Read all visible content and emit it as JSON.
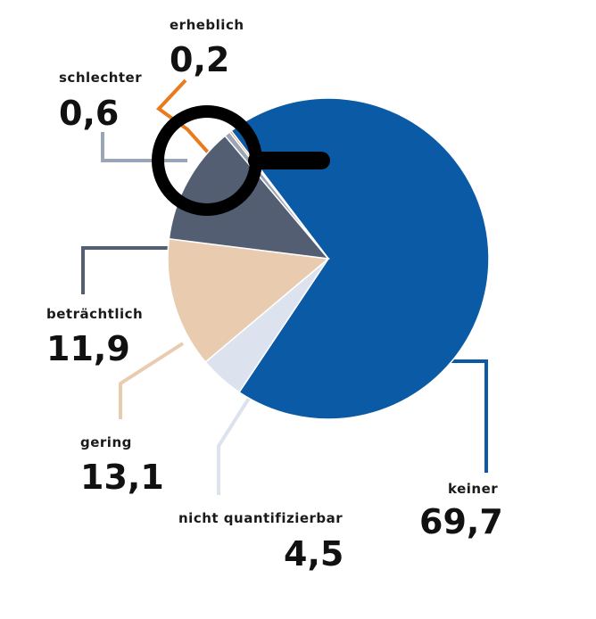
{
  "chart_data": {
    "type": "pie",
    "title": "",
    "slices": [
      {
        "label": "keiner",
        "display": "69,7",
        "value": 69.7,
        "color": "#0a5aa6"
      },
      {
        "label": "nicht quantifizierbar",
        "display": "4,5",
        "value": 4.5,
        "color": "#dde3ee"
      },
      {
        "label": "gering",
        "display": "13,1",
        "value": 13.1,
        "color": "#e9ccaf"
      },
      {
        "label": "beträchtlich",
        "display": "11,9",
        "value": 11.9,
        "color": "#545e73"
      },
      {
        "label": "schlechter",
        "display": "0,6",
        "value": 0.6,
        "color": "#9ba5b8"
      },
      {
        "label": "erheblich",
        "display": "0,2",
        "value": 0.2,
        "color": "#ea7a1e"
      }
    ],
    "magnifier": true
  }
}
